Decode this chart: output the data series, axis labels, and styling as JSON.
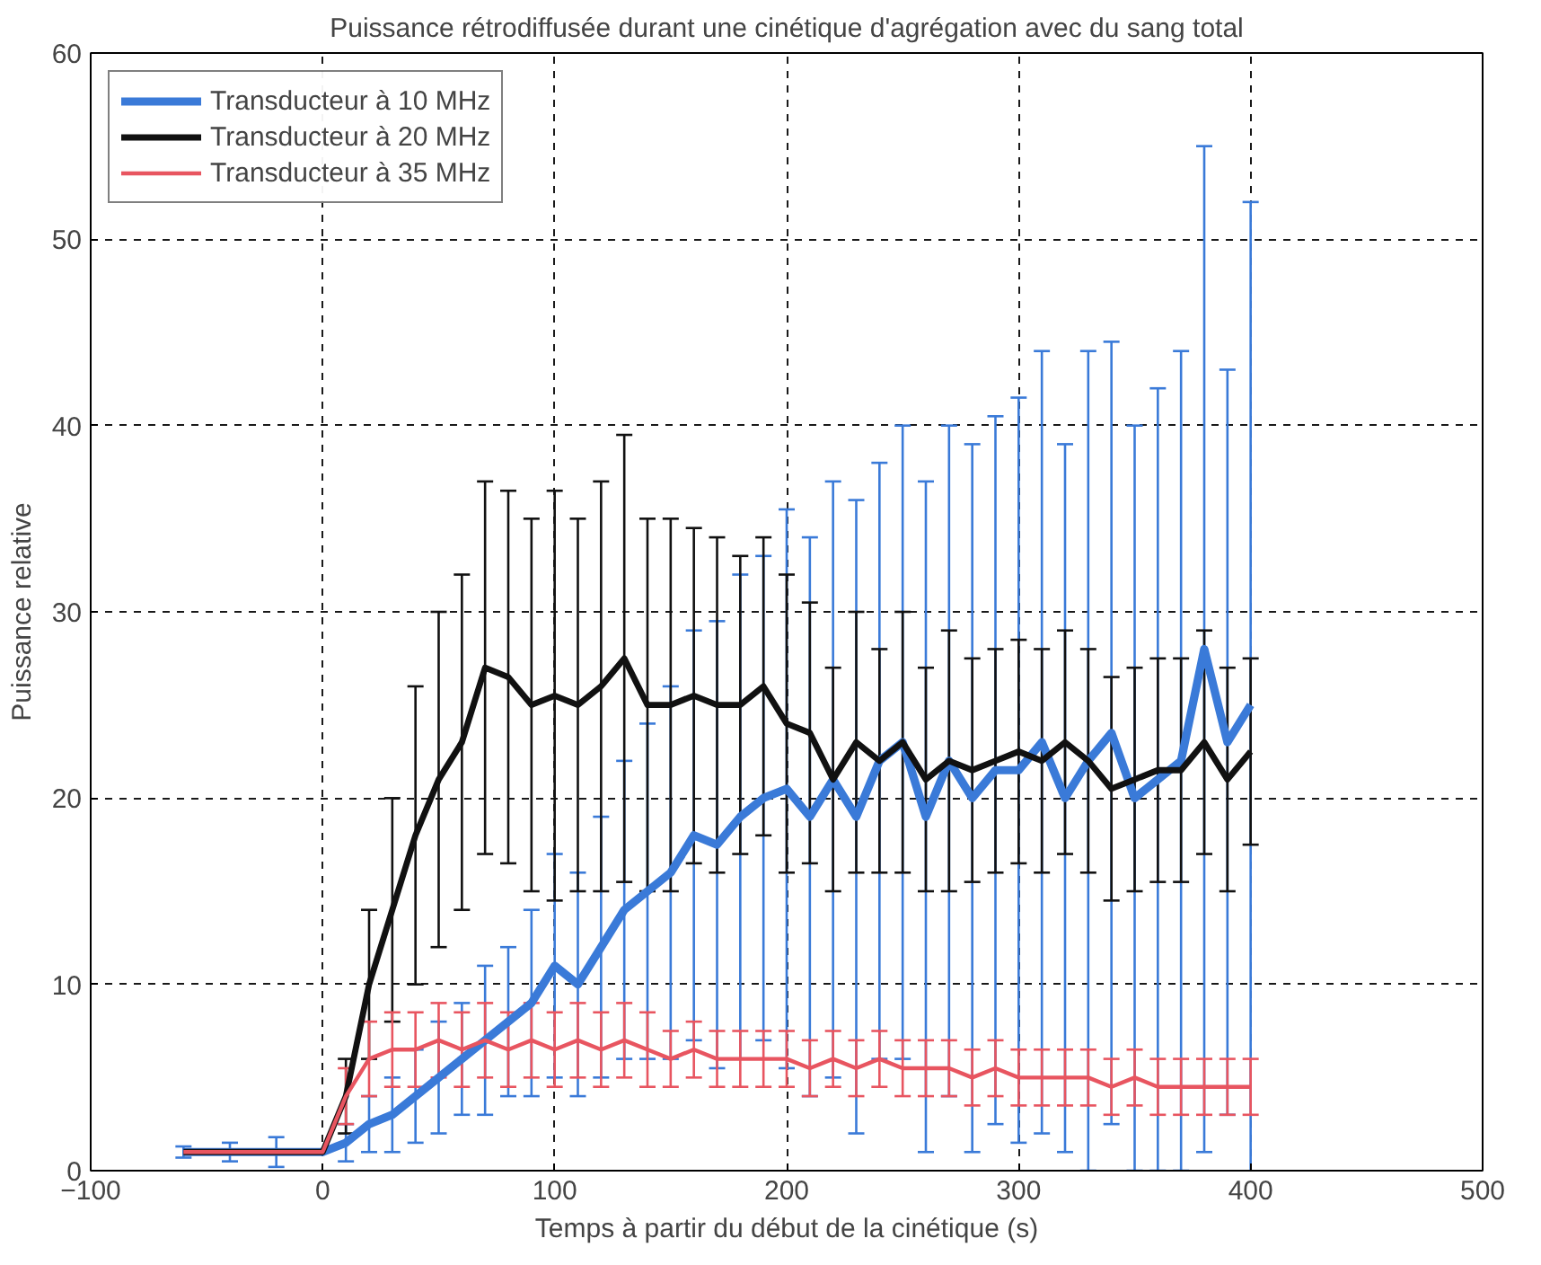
{
  "chart_data": {
    "type": "line",
    "title": "Puissance rétrodiffusée durant une cinétique d'agrégation avec du sang total",
    "xlabel": "Temps à partir du début de la cinétique (s)",
    "ylabel": "Puissance relative",
    "x": [
      -60,
      -40,
      -20,
      0,
      10,
      20,
      30,
      40,
      50,
      60,
      70,
      80,
      90,
      100,
      110,
      120,
      130,
      140,
      150,
      160,
      170,
      180,
      190,
      200,
      210,
      220,
      230,
      240,
      250,
      260,
      270,
      280,
      290,
      300,
      310,
      320,
      330,
      340,
      350,
      360,
      370,
      380,
      390,
      400
    ],
    "xlim": [
      -100,
      500
    ],
    "ylim": [
      0,
      60
    ],
    "xticks": [
      -100,
      0,
      100,
      200,
      300,
      400,
      500
    ],
    "yticks": [
      0,
      10,
      20,
      30,
      40,
      50,
      60
    ],
    "grid": true,
    "legend": "top left",
    "line_style": "solid",
    "marker": "none",
    "series": [
      {
        "name": "Transducteur à 10 MHz",
        "color": "#3a7ad8",
        "values": [
          1,
          1,
          1,
          1,
          1.5,
          2.5,
          3,
          4,
          5,
          6,
          7,
          8,
          9,
          11,
          10,
          12,
          14,
          15,
          16,
          18,
          17.5,
          19,
          20,
          20.5,
          19,
          21,
          19,
          22,
          23,
          19,
          22,
          20,
          21.5,
          21.5,
          23,
          20,
          22,
          23.5,
          20,
          21,
          22,
          28,
          23,
          25
        ],
        "errors": [
          0.3,
          0.5,
          0.8,
          null,
          1,
          1.5,
          2,
          2.5,
          3,
          3,
          4,
          4,
          5,
          6,
          6,
          7,
          8,
          9,
          10,
          11,
          12,
          13,
          13,
          15,
          15,
          16,
          17,
          16,
          17,
          18,
          18,
          19,
          19,
          20,
          21,
          19,
          22,
          21,
          20,
          21,
          22,
          27,
          20,
          27
        ]
      },
      {
        "name": "Transducteur à 20 MHz",
        "color": "#111111",
        "values": [
          1,
          1,
          1,
          1,
          4,
          10,
          14,
          18,
          21,
          23,
          27,
          26.5,
          25,
          25.5,
          25,
          26,
          27.5,
          25,
          25,
          25.5,
          25,
          25,
          26,
          24,
          23.5,
          21,
          23,
          22,
          23,
          21,
          22,
          21.5,
          22,
          22.5,
          22,
          23,
          22,
          20.5,
          21,
          21.5,
          21.5,
          23,
          21,
          22.5
        ],
        "errors": [
          null,
          null,
          null,
          null,
          2,
          4,
          6,
          8,
          9,
          9,
          10,
          10,
          10,
          11,
          10,
          11,
          12,
          10,
          10,
          9,
          9,
          8,
          8,
          8,
          7,
          6,
          7,
          6,
          7,
          6,
          7,
          6,
          6,
          6,
          6,
          6,
          6,
          6,
          6,
          6,
          6,
          6,
          6,
          5
        ]
      },
      {
        "name": "Transducteur à 35 MHz",
        "color": "#e85560",
        "values": [
          1,
          1,
          1,
          1,
          4,
          6,
          6.5,
          6.5,
          7,
          6.5,
          7,
          6.5,
          7,
          6.5,
          7,
          6.5,
          7,
          6.5,
          6,
          6.5,
          6,
          6,
          6,
          6,
          5.5,
          6,
          5.5,
          6,
          5.5,
          5.5,
          5.5,
          5,
          5.5,
          5,
          5,
          5,
          5,
          4.5,
          5,
          4.5,
          4.5,
          4.5,
          4.5,
          4.5
        ],
        "errors": [
          null,
          null,
          null,
          null,
          1.5,
          2,
          2,
          2,
          2,
          2,
          2,
          2,
          2,
          2,
          2,
          2,
          2,
          2,
          1.5,
          1.5,
          1.5,
          1.5,
          1.5,
          1.5,
          1.5,
          1.5,
          1.5,
          1.5,
          1.5,
          1.5,
          1.5,
          1.5,
          1.5,
          1.5,
          1.5,
          1.5,
          1.5,
          1.5,
          1.5,
          1.5,
          1.5,
          1.5,
          1.5,
          1.5
        ]
      }
    ]
  }
}
